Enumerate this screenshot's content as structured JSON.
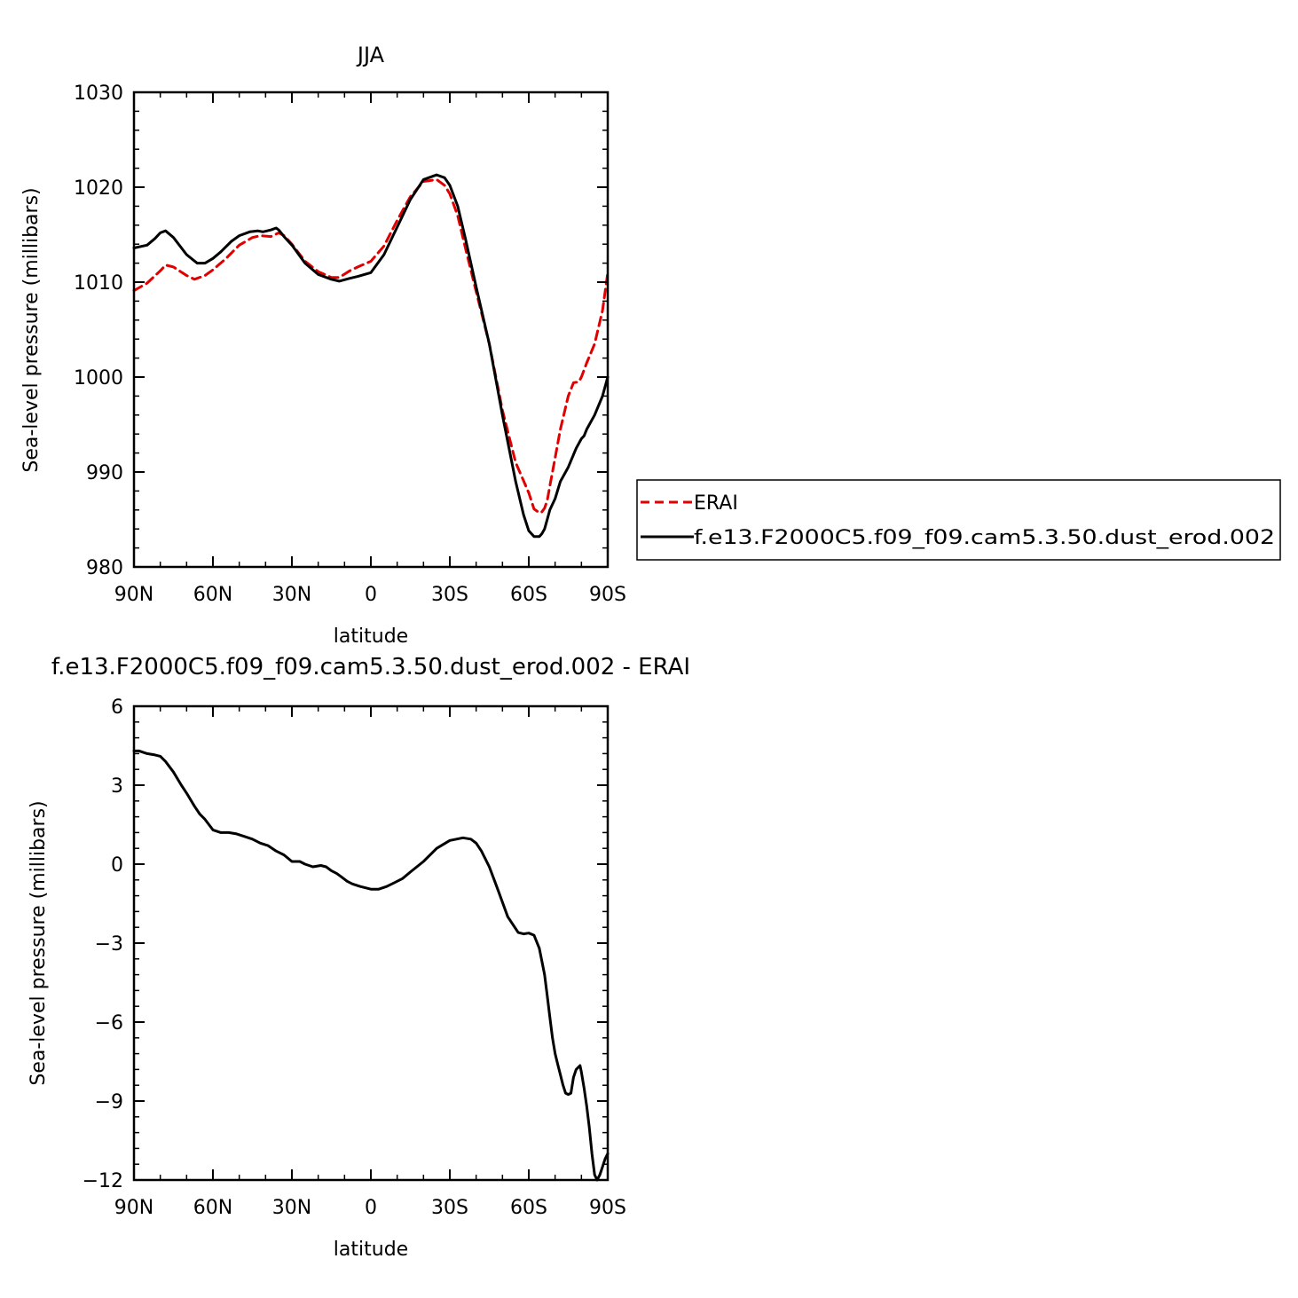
{
  "chart_data": [
    {
      "type": "line",
      "title": "JJA",
      "xlabel": "latitude",
      "ylabel": "Sea-level pressure (millibars)",
      "xlim": [
        90,
        -90
      ],
      "ylim": [
        980,
        1030
      ],
      "x_ticks": [
        {
          "value": 90,
          "label": "90N"
        },
        {
          "value": 60,
          "label": "60N"
        },
        {
          "value": 30,
          "label": "30N"
        },
        {
          "value": 0,
          "label": "0"
        },
        {
          "value": -30,
          "label": "30S"
        },
        {
          "value": -60,
          "label": "60S"
        },
        {
          "value": -90,
          "label": "90S"
        }
      ],
      "y_ticks": [
        {
          "value": 980,
          "label": "980"
        },
        {
          "value": 990,
          "label": "990"
        },
        {
          "value": 1000,
          "label": "1000"
        },
        {
          "value": 1010,
          "label": "1010"
        },
        {
          "value": 1020,
          "label": "1020"
        },
        {
          "value": 1030,
          "label": "1030"
        }
      ],
      "legend": {
        "placement": "right"
      },
      "series": [
        {
          "name": "ERAI",
          "color": "#e00000",
          "dash": "dashed",
          "x": [
            90,
            85,
            80,
            78,
            75,
            70,
            67,
            63,
            60,
            55,
            50,
            45,
            42,
            38,
            35,
            33,
            30,
            25,
            20,
            15,
            12,
            8,
            5,
            0,
            -5,
            -10,
            -15,
            -20,
            -25,
            -28,
            -30,
            -33,
            -36,
            -40,
            -45,
            -50,
            -55,
            -60,
            -62,
            -64,
            -65,
            -66,
            -67,
            -68,
            -70,
            -72,
            -75,
            -77,
            -79,
            -80,
            -82,
            -85,
            -88,
            -90
          ],
          "y": [
            1009.1,
            1009.9,
            1011.2,
            1011.8,
            1011.6,
            1010.7,
            1010.3,
            1010.7,
            1011.3,
            1012.5,
            1013.9,
            1014.7,
            1014.9,
            1014.8,
            1015.2,
            1014.9,
            1014.0,
            1012.2,
            1011.1,
            1010.5,
            1010.5,
            1011.2,
            1011.6,
            1012.2,
            1013.8,
            1016.5,
            1019.0,
            1020.6,
            1020.8,
            1020.2,
            1019.3,
            1017.0,
            1013.5,
            1009.0,
            1003.5,
            996.5,
            991.0,
            987.8,
            986.1,
            985.7,
            985.8,
            986.2,
            987.0,
            988.5,
            991.5,
            994.5,
            998.0,
            999.4,
            999.5,
            1000.0,
            1001.5,
            1003.5,
            1007.0,
            1011.0
          ]
        },
        {
          "name": "f.e13.F2000C5.f09_f09.cam5.3.50.dust_erod.002",
          "color": "#000000",
          "dash": "solid",
          "x": [
            90,
            85,
            82,
            80,
            78,
            75,
            70,
            66,
            63,
            60,
            57,
            53,
            50,
            46,
            43,
            41,
            38,
            36,
            35,
            33,
            30,
            25,
            20,
            15,
            12,
            8,
            5,
            0,
            -5,
            -10,
            -15,
            -20,
            -25,
            -28,
            -30,
            -33,
            -36,
            -40,
            -45,
            -50,
            -55,
            -58,
            -60,
            -62,
            -63,
            -64,
            -65,
            -66,
            -67,
            -68,
            -70,
            -72,
            -75,
            -78,
            -80,
            -81,
            -82,
            -85,
            -88,
            -90
          ],
          "y": [
            1013.6,
            1013.9,
            1014.6,
            1015.2,
            1015.4,
            1014.7,
            1012.9,
            1012.0,
            1012.0,
            1012.5,
            1013.2,
            1014.3,
            1014.9,
            1015.3,
            1015.4,
            1015.3,
            1015.5,
            1015.7,
            1015.5,
            1014.8,
            1013.9,
            1012.0,
            1010.8,
            1010.3,
            1010.1,
            1010.4,
            1010.6,
            1011.0,
            1012.9,
            1015.8,
            1018.7,
            1020.8,
            1021.3,
            1021.0,
            1020.2,
            1018.0,
            1014.5,
            1009.5,
            1003.5,
            996.0,
            989.0,
            985.5,
            983.8,
            983.2,
            983.2,
            983.2,
            983.5,
            984.0,
            985.0,
            986.0,
            987.2,
            989.0,
            990.5,
            992.5,
            993.5,
            993.8,
            994.5,
            996.0,
            998.0,
            1000.0
          ]
        }
      ]
    },
    {
      "type": "line",
      "title": "f.e13.F2000C5.f09_f09.cam5.3.50.dust_erod.002 - ERAI",
      "xlabel": "latitude",
      "ylabel": "Sea-level pressure (millibars)",
      "xlim": [
        90,
        -90
      ],
      "ylim": [
        -12,
        6
      ],
      "x_ticks": [
        {
          "value": 90,
          "label": "90N"
        },
        {
          "value": 60,
          "label": "60N"
        },
        {
          "value": 30,
          "label": "30N"
        },
        {
          "value": 0,
          "label": "0"
        },
        {
          "value": -30,
          "label": "30S"
        },
        {
          "value": -60,
          "label": "60S"
        },
        {
          "value": -90,
          "label": "90S"
        }
      ],
      "y_ticks": [
        {
          "value": -12,
          "label": "−12"
        },
        {
          "value": -9,
          "label": "−9"
        },
        {
          "value": -6,
          "label": "−6"
        },
        {
          "value": -3,
          "label": "−3"
        },
        {
          "value": 0,
          "label": "0"
        },
        {
          "value": 3,
          "label": "3"
        },
        {
          "value": 6,
          "label": "6"
        }
      ],
      "series": [
        {
          "color": "#000000",
          "x": [
            90,
            88,
            85,
            82,
            80,
            78,
            75,
            72,
            70,
            67,
            65,
            63,
            60,
            57,
            54,
            51,
            48,
            45,
            42,
            39,
            36,
            33,
            30,
            27,
            25,
            22,
            19,
            17,
            15,
            13,
            11,
            9,
            7,
            4,
            2,
            0,
            -3,
            -6,
            -9,
            -12,
            -15,
            -20,
            -25,
            -30,
            -35,
            -38,
            -40,
            -42,
            -45,
            -48,
            -52,
            -56,
            -58,
            -60,
            -62,
            -64,
            -66,
            -67,
            -68,
            -69,
            -70,
            -71,
            -72,
            -73,
            -74,
            -75,
            -76,
            -77,
            -78,
            -79,
            -79.5,
            -80,
            -81,
            -82,
            -83,
            -84,
            -85,
            -86,
            -87,
            -88,
            -89,
            -90
          ],
          "y": [
            4.3,
            4.3,
            4.2,
            4.15,
            4.1,
            3.9,
            3.5,
            3.0,
            2.7,
            2.2,
            1.9,
            1.7,
            1.3,
            1.2,
            1.2,
            1.15,
            1.05,
            0.95,
            0.8,
            0.7,
            0.5,
            0.35,
            0.1,
            0.1,
            0.0,
            -0.1,
            -0.05,
            -0.1,
            -0.25,
            -0.35,
            -0.5,
            -0.65,
            -0.75,
            -0.85,
            -0.9,
            -0.95,
            -0.95,
            -0.85,
            -0.7,
            -0.55,
            -0.3,
            0.1,
            0.6,
            0.9,
            1.0,
            0.95,
            0.8,
            0.5,
            -0.1,
            -0.9,
            -2.0,
            -2.6,
            -2.65,
            -2.62,
            -2.7,
            -3.2,
            -4.2,
            -5.0,
            -5.8,
            -6.6,
            -7.2,
            -7.6,
            -8.0,
            -8.4,
            -8.7,
            -8.75,
            -8.7,
            -8.1,
            -7.8,
            -7.7,
            -7.65,
            -7.9,
            -8.5,
            -9.2,
            -10.0,
            -11.0,
            -11.8,
            -12.0,
            -11.8,
            -11.5,
            -11.2,
            -11.0
          ]
        }
      ]
    }
  ]
}
